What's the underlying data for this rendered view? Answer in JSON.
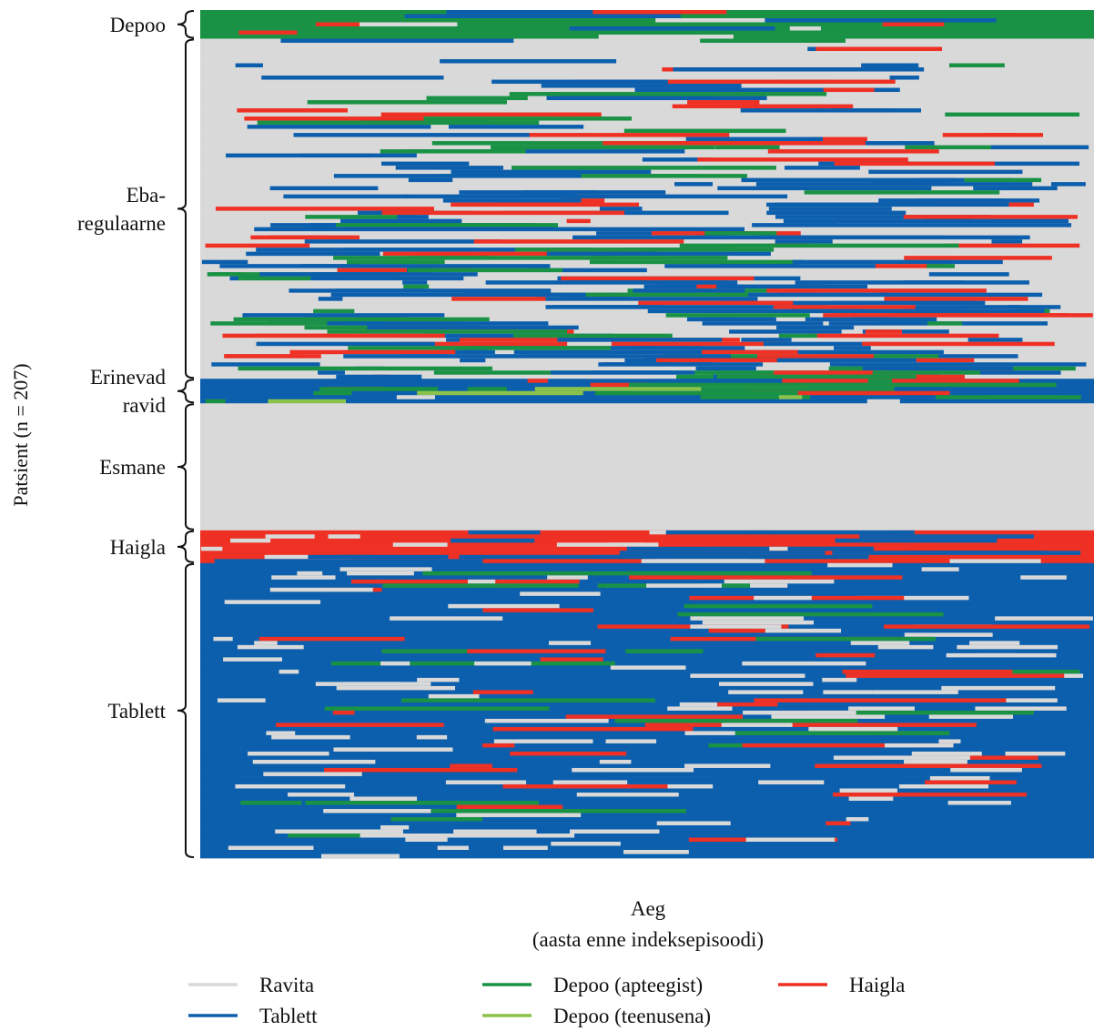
{
  "chart_data": {
    "type": "heatmap",
    "title": "",
    "ylabel": "Patsient (n = 207)",
    "xlabel_line1": "Aeg",
    "xlabel_line2": "(aasta enne indeksepisoodi)",
    "n_patients": 207,
    "time_range": [
      0,
      1
    ],
    "colors": {
      "Ravita": "#d9d9d9",
      "Tablett": "#0c5fad",
      "Depoo_apteegist": "#1a9245",
      "Depoo_teenusena": "#8bc34a",
      "Haigla": "#ee3124"
    },
    "legend": [
      {
        "key": "Ravita",
        "label": "Ravita"
      },
      {
        "key": "Tablett",
        "label": "Tablett"
      },
      {
        "key": "Depoo_apteegist",
        "label": "Depoo (apteegist)"
      },
      {
        "key": "Depoo_teenusena",
        "label": "Depoo (teenusena)"
      },
      {
        "key": "Haigla",
        "label": "Haigla"
      }
    ],
    "groups": [
      {
        "lines": [
          "Depoo"
        ],
        "rows": [
          0,
          6
        ],
        "base": "Depoo_apteegist"
      },
      {
        "lines": [
          "Eba-",
          "regulaarne"
        ],
        "rows": [
          7,
          89
        ],
        "base": "Ravita"
      },
      {
        "lines": [
          "Erinevad",
          "ravid"
        ],
        "rows": [
          90,
          95
        ],
        "base": "Tablett"
      },
      {
        "lines": [
          "Esmane"
        ],
        "rows": [
          96,
          126
        ],
        "base": "Ravita"
      },
      {
        "lines": [
          "Haigla"
        ],
        "rows": [
          127,
          134
        ],
        "base": "Haigla"
      },
      {
        "lines": [
          "Tablett"
        ],
        "rows": [
          135,
          206
        ],
        "base": "Tablett"
      }
    ]
  }
}
